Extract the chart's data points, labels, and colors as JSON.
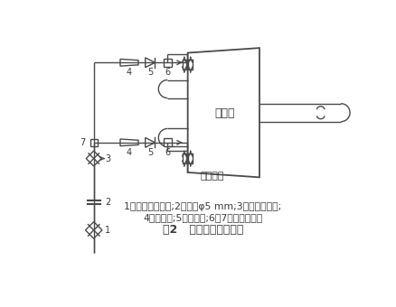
{
  "title": "图2   中压蒸汽冷却系统",
  "caption_line1": "1一冷却蒸汽总阀;2节流孔φ5 mm;3一手动针型阀;",
  "caption_line2": "4一大小头;5一逆止阀;6、7一等径三通。",
  "label_zhongyaqi": "中压缸",
  "label_jinqi": "中压进汽",
  "bg_color": "#ffffff",
  "lc": "#4a4a4a",
  "tc": "#3a3a3a"
}
